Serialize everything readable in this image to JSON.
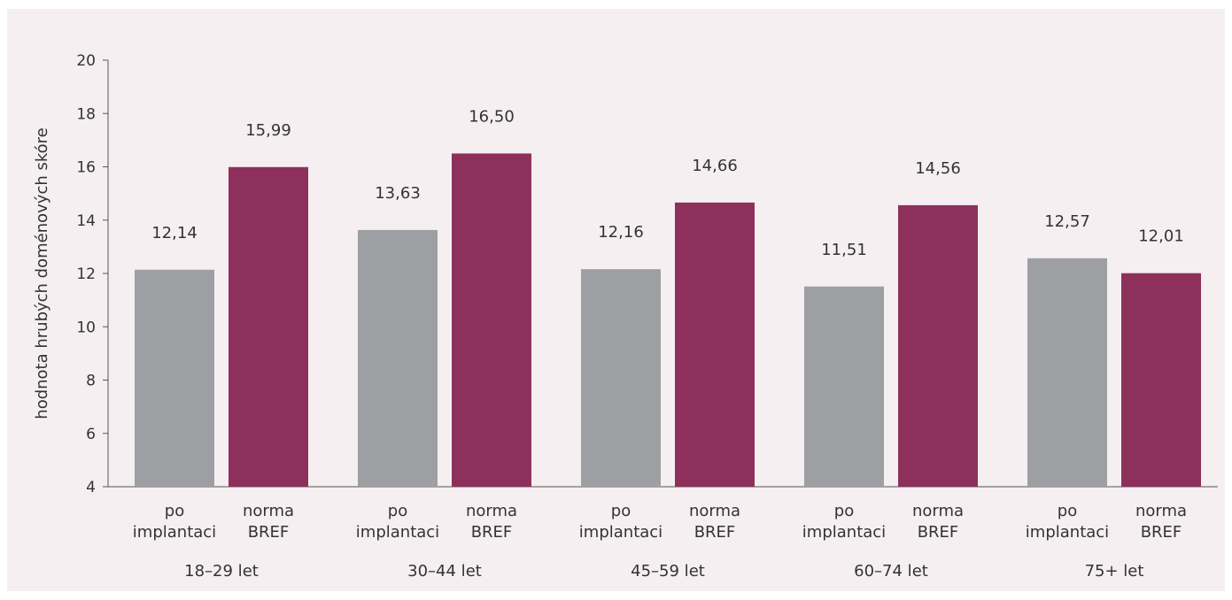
{
  "chart_data": {
    "type": "bar",
    "title": "",
    "ylabel": "hodnota hrubých doménových skóre",
    "ylim": [
      4,
      20
    ],
    "yticks": [
      4,
      6,
      8,
      10,
      12,
      14,
      16,
      18,
      20
    ],
    "grid": false,
    "legend": "none",
    "groups": [
      "18–29 let",
      "30–44 let",
      "45–59 let",
      "60–74 let",
      "75+ let"
    ],
    "bar_labels": [
      [
        "po",
        "implantaci"
      ],
      [
        "norma",
        "BREF"
      ]
    ],
    "series": [
      {
        "color": "#9d9fa2",
        "values": [
          12.14,
          13.63,
          12.16,
          11.51,
          12.57
        ],
        "value_labels": [
          "12,14",
          "13,63",
          "12,16",
          "11,51",
          "12,57"
        ]
      },
      {
        "color": "#8e305c",
        "values": [
          15.99,
          16.5,
          14.66,
          14.56,
          12.01
        ],
        "value_labels": [
          "15,99",
          "16,50",
          "14,66",
          "14,56",
          "12,01"
        ]
      }
    ]
  }
}
